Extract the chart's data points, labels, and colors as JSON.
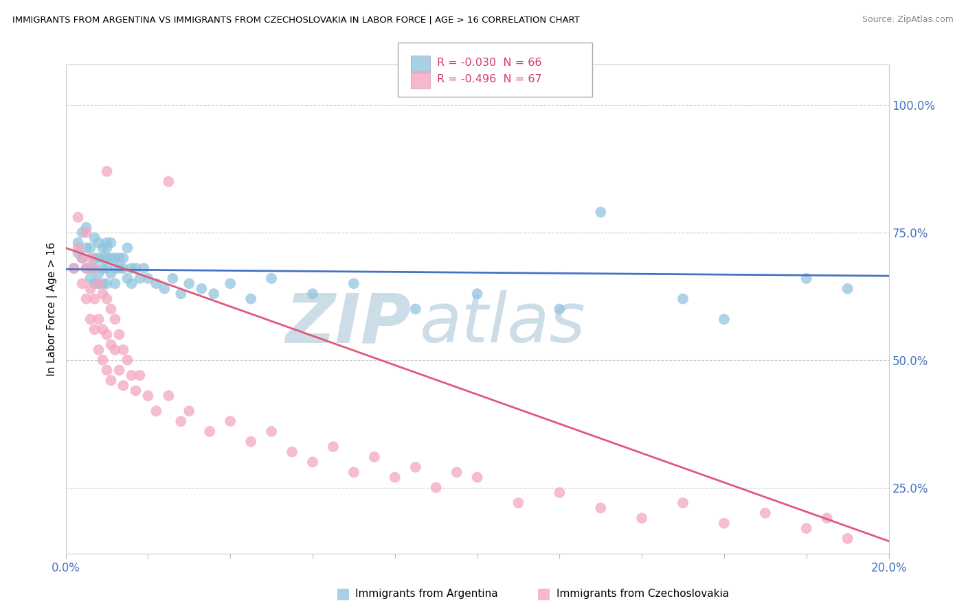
{
  "title": "IMMIGRANTS FROM ARGENTINA VS IMMIGRANTS FROM CZECHOSLOVAKIA IN LABOR FORCE | AGE > 16 CORRELATION CHART",
  "source": "Source: ZipAtlas.com",
  "ylabel": "In Labor Force | Age > 16",
  "xlim": [
    0.0,
    0.2
  ],
  "ylim": [
    0.12,
    1.08
  ],
  "xticks": [
    0.0,
    0.02,
    0.04,
    0.06,
    0.08,
    0.1,
    0.12,
    0.14,
    0.16,
    0.18,
    0.2
  ],
  "xticklabels": [
    "0.0%",
    "",
    "",
    "",
    "",
    "",
    "",
    "",
    "",
    "",
    "20.0%"
  ],
  "yticks_right": [
    0.25,
    0.5,
    0.75,
    1.0
  ],
  "ytick_right_labels": [
    "25.0%",
    "50.0%",
    "75.0%",
    "100.0%"
  ],
  "argentina_color": "#92c5de",
  "czechoslovakia_color": "#f4a6c0",
  "argentina_line_color": "#4472c4",
  "czechoslovakia_line_color": "#e05878",
  "argentina_R": -0.03,
  "argentina_N": 66,
  "czechoslovakia_R": -0.496,
  "czechoslovakia_N": 67,
  "legend_text_color": "#d63c6b",
  "legend_N_color": "#2166ac",
  "watermark": "ZIPAtlas",
  "watermark_color": "#ccdde8",
  "argentina_x": [
    0.002,
    0.003,
    0.003,
    0.004,
    0.004,
    0.005,
    0.005,
    0.005,
    0.006,
    0.006,
    0.006,
    0.007,
    0.007,
    0.007,
    0.007,
    0.008,
    0.008,
    0.008,
    0.008,
    0.009,
    0.009,
    0.009,
    0.009,
    0.01,
    0.01,
    0.01,
    0.01,
    0.01,
    0.011,
    0.011,
    0.011,
    0.012,
    0.012,
    0.012,
    0.013,
    0.013,
    0.014,
    0.014,
    0.015,
    0.015,
    0.016,
    0.016,
    0.017,
    0.018,
    0.019,
    0.02,
    0.022,
    0.024,
    0.026,
    0.028,
    0.03,
    0.033,
    0.036,
    0.04,
    0.045,
    0.05,
    0.06,
    0.07,
    0.085,
    0.1,
    0.12,
    0.15,
    0.16,
    0.18,
    0.19,
    0.13
  ],
  "argentina_y": [
    0.68,
    0.71,
    0.73,
    0.7,
    0.75,
    0.68,
    0.72,
    0.76,
    0.68,
    0.72,
    0.66,
    0.7,
    0.74,
    0.68,
    0.65,
    0.7,
    0.73,
    0.67,
    0.65,
    0.7,
    0.72,
    0.68,
    0.65,
    0.7,
    0.73,
    0.68,
    0.65,
    0.72,
    0.7,
    0.73,
    0.67,
    0.7,
    0.68,
    0.65,
    0.7,
    0.68,
    0.7,
    0.68,
    0.72,
    0.66,
    0.68,
    0.65,
    0.68,
    0.66,
    0.68,
    0.66,
    0.65,
    0.64,
    0.66,
    0.63,
    0.65,
    0.64,
    0.63,
    0.65,
    0.62,
    0.66,
    0.63,
    0.65,
    0.6,
    0.63,
    0.6,
    0.62,
    0.58,
    0.66,
    0.64,
    0.79
  ],
  "czechoslovakia_x": [
    0.002,
    0.003,
    0.003,
    0.004,
    0.004,
    0.005,
    0.005,
    0.005,
    0.006,
    0.006,
    0.006,
    0.007,
    0.007,
    0.007,
    0.008,
    0.008,
    0.008,
    0.009,
    0.009,
    0.009,
    0.01,
    0.01,
    0.01,
    0.011,
    0.011,
    0.011,
    0.012,
    0.012,
    0.013,
    0.013,
    0.014,
    0.014,
    0.015,
    0.016,
    0.017,
    0.018,
    0.02,
    0.022,
    0.025,
    0.028,
    0.03,
    0.035,
    0.04,
    0.045,
    0.05,
    0.055,
    0.06,
    0.065,
    0.07,
    0.075,
    0.08,
    0.085,
    0.09,
    0.095,
    0.1,
    0.11,
    0.12,
    0.13,
    0.14,
    0.15,
    0.16,
    0.17,
    0.18,
    0.185,
    0.19,
    0.025,
    0.01
  ],
  "czechoslovakia_y": [
    0.68,
    0.72,
    0.78,
    0.7,
    0.65,
    0.75,
    0.68,
    0.62,
    0.7,
    0.64,
    0.58,
    0.68,
    0.62,
    0.56,
    0.65,
    0.58,
    0.52,
    0.63,
    0.56,
    0.5,
    0.62,
    0.55,
    0.48,
    0.6,
    0.53,
    0.46,
    0.58,
    0.52,
    0.55,
    0.48,
    0.52,
    0.45,
    0.5,
    0.47,
    0.44,
    0.47,
    0.43,
    0.4,
    0.43,
    0.38,
    0.4,
    0.36,
    0.38,
    0.34,
    0.36,
    0.32,
    0.3,
    0.33,
    0.28,
    0.31,
    0.27,
    0.29,
    0.25,
    0.28,
    0.27,
    0.22,
    0.24,
    0.21,
    0.19,
    0.22,
    0.18,
    0.2,
    0.17,
    0.19,
    0.15,
    0.85,
    0.87
  ]
}
